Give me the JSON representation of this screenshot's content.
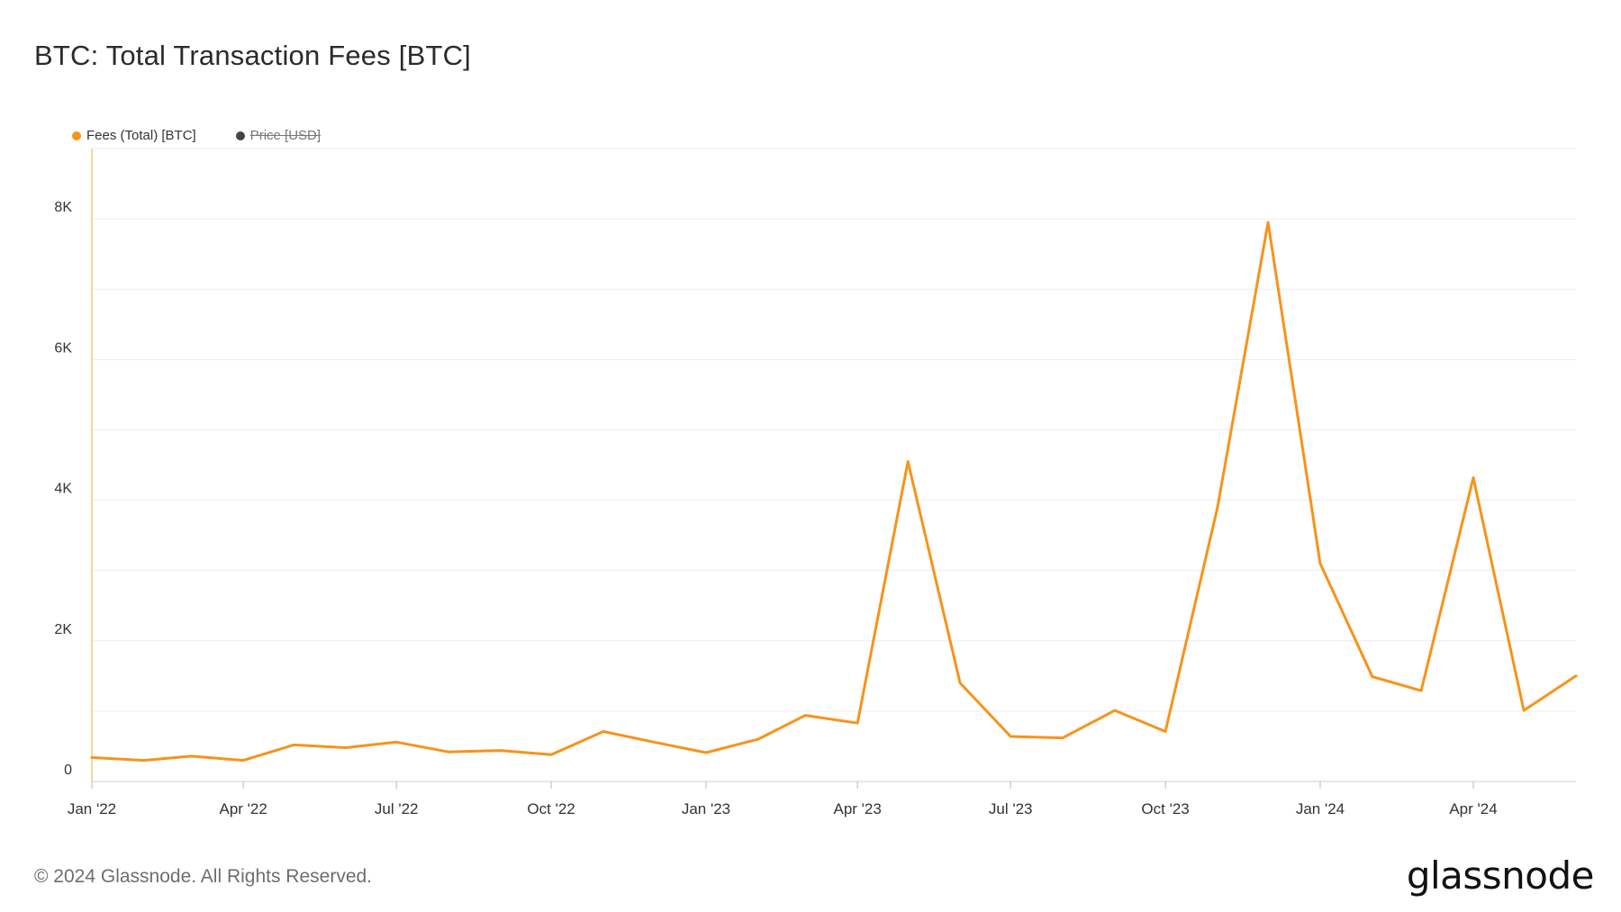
{
  "title": "BTC: Total Transaction Fees [BTC]",
  "legend": [
    {
      "label": "Fees (Total) [BTC]",
      "color": "#f7931a",
      "hidden": false
    },
    {
      "label": "Price [USD]",
      "color": "#444444",
      "hidden": true
    }
  ],
  "footer": {
    "copyright": "© 2024 Glassnode. All Rights Reserved.",
    "logo": "glassnode"
  },
  "chart_data": {
    "type": "line",
    "y_ticks": [
      0,
      2000,
      4000,
      6000,
      8000
    ],
    "y_tick_labels": [
      "0",
      "2K",
      "4K",
      "6K",
      "8K"
    ],
    "ylim": [
      0,
      9000
    ],
    "x_ticks": [
      "2022-01-01",
      "2022-04-01",
      "2022-07-01",
      "2022-10-01",
      "2023-01-01",
      "2023-04-01",
      "2023-07-01",
      "2023-10-01",
      "2024-01-01",
      "2024-04-01"
    ],
    "x_tick_labels": [
      "Jan '22",
      "Apr '22",
      "Jul '22",
      "Oct '22",
      "Jan '23",
      "Apr '23",
      "Jul '23",
      "Oct '23",
      "Jan '24",
      "Apr '24"
    ],
    "xlim": [
      "2022-01-01",
      "2024-06-01"
    ],
    "grid": true,
    "legend_position": "top-left",
    "series": [
      {
        "name": "Fees (Total) [BTC]",
        "color": "#f7931a",
        "x": [
          "2022-01-01",
          "2022-02-01",
          "2022-03-01",
          "2022-04-01",
          "2022-05-01",
          "2022-06-01",
          "2022-07-01",
          "2022-08-01",
          "2022-09-01",
          "2022-10-01",
          "2022-11-01",
          "2022-12-01",
          "2023-01-01",
          "2023-02-01",
          "2023-03-01",
          "2023-04-01",
          "2023-05-01",
          "2023-06-01",
          "2023-07-01",
          "2023-08-01",
          "2023-09-01",
          "2023-10-01",
          "2023-11-01",
          "2023-12-01",
          "2024-01-01",
          "2024-02-01",
          "2024-03-01",
          "2024-04-01",
          "2024-05-01",
          "2024-06-01"
        ],
        "values": [
          340,
          300,
          360,
          300,
          520,
          480,
          560,
          420,
          440,
          380,
          710,
          560,
          410,
          600,
          940,
          830,
          4550,
          1400,
          640,
          620,
          1010,
          710,
          3900,
          7950,
          3100,
          1490,
          1290,
          4320,
          1010,
          1500
        ]
      }
    ]
  }
}
